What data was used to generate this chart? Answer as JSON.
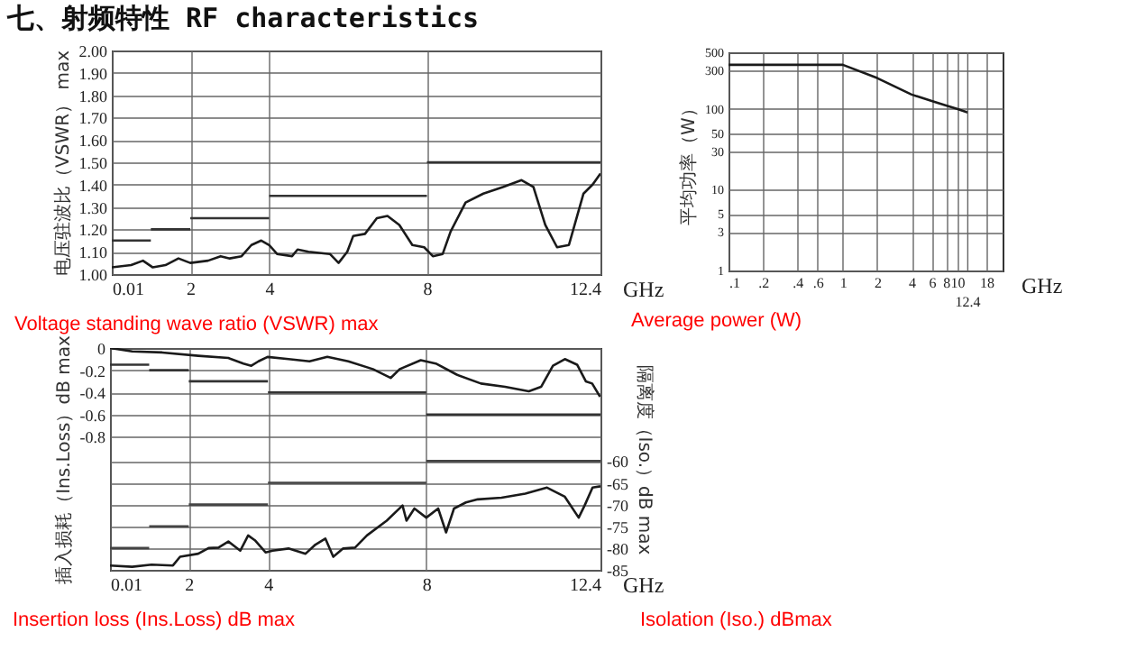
{
  "chart_data": [
    {
      "type": "line",
      "title": "七、射频特性 RF characteristics",
      "xlabel": "GHz",
      "ylabel": "电压驻波比（VSWR） max",
      "annotations": [
        "Voltage standing wave ratio (VSWR) max"
      ],
      "xlim": [
        0.01,
        12.4
      ],
      "xticks": [
        0.01,
        2,
        4,
        8,
        12.4
      ],
      "ylim": [
        1,
        2
      ],
      "yticks": [
        {
          "value": 1,
          "label": "1.00"
        },
        {
          "value": 1.1,
          "label": "1.10"
        },
        {
          "value": 1.2,
          "label": "1.20"
        },
        {
          "value": 1.3,
          "label": "1.30"
        },
        {
          "value": 1.4,
          "label": "1.40"
        },
        {
          "value": 1.5,
          "label": "1.50"
        },
        {
          "value": 1.6,
          "label": "1.60"
        },
        {
          "value": 1.7,
          "label": "1.70"
        },
        {
          "value": 1.8,
          "label": "1.80"
        },
        {
          "value": 1.9,
          "label": "1.90"
        },
        {
          "value": 2,
          "label": "2.00"
        }
      ],
      "grid": true,
      "series": [
        {
          "color": "#1a1a1a",
          "x": [
            0.01,
            0.5,
            0.8,
            1.05,
            1.37,
            1.7,
            2,
            2.45,
            2.77,
            3,
            3.3,
            3.55,
            3.8,
            4,
            4.2,
            4.58,
            4.72,
            5,
            5.54,
            5.76,
            5.98,
            6.13,
            6.43,
            6.73,
            7,
            7.3,
            7.63,
            7.93,
            8.15,
            8.4,
            8.6,
            8.98,
            9.43,
            9.94,
            10.4,
            10.7,
            11,
            11.3,
            11.6,
            11.97,
            12.2,
            12.4
          ],
          "values": [
            1.03,
            1.04,
            1.06,
            1.03,
            1.04,
            1.07,
            1.05,
            1.06,
            1.08,
            1.07,
            1.08,
            1.13,
            1.15,
            1.13,
            1.09,
            1.08,
            1.11,
            1.1,
            1.09,
            1.05,
            1.1,
            1.17,
            1.18,
            1.25,
            1.26,
            1.22,
            1.13,
            1.12,
            1.08,
            1.09,
            1.19,
            1.32,
            1.36,
            1.39,
            1.42,
            1.39,
            1.22,
            1.12,
            1.13,
            1.36,
            1.4,
            1.45
          ]
        },
        {
          "color": "#333333",
          "x": [
            0.01,
            1,
            null,
            1,
            2,
            null,
            2,
            4,
            null,
            4,
            8,
            null,
            8,
            12.4
          ],
          "values": [
            1.15,
            1.15,
            null,
            1.2,
            1.2,
            null,
            1.25,
            1.25,
            null,
            1.35,
            1.35,
            null,
            1.5,
            1.5
          ]
        }
      ]
    },
    {
      "type": "line",
      "xlabel": "GHz",
      "ylabel": "平均功率（W）",
      "annotations": [
        "Average power (W)"
      ],
      "log": "xy",
      "xlim": [
        0.1,
        25
      ],
      "xticks": [
        {
          "value": 0.1,
          "label": ".1"
        },
        {
          "value": 0.2,
          "label": ".2"
        },
        {
          "value": 0.4,
          "label": ".4"
        },
        {
          "value": 0.6,
          "label": ".6"
        },
        1,
        2,
        4,
        6,
        8,
        10,
        18
      ],
      "ref_lines": [
        {
          "axis": "x",
          "value": 12.4,
          "label": "12.4"
        }
      ],
      "ylim": [
        1,
        500
      ],
      "yticks": [
        1,
        3,
        5,
        10,
        30,
        50,
        100,
        300,
        500
      ],
      "grid": true,
      "series": [
        {
          "color": "#1a1a1a",
          "x": [
            0.1,
            1,
            2,
            4,
            6,
            8,
            10,
            12.4
          ],
          "values": [
            350,
            350,
            240,
            150,
            125,
            110,
            100,
            90
          ]
        }
      ]
    },
    {
      "type": "line",
      "xlabel": "GHz",
      "ylabel": "插入损耗（Ins.Loss）dB max",
      "y2label": "隔离度（Iso.）dB max",
      "annotations": [
        "Insertion loss (Ins.Loss) dB max",
        "Isolation (Iso.) dBmax"
      ],
      "xlim": [
        0.01,
        12.4
      ],
      "xticks": [
        0.01,
        2,
        4,
        8,
        12.4
      ],
      "ylim": [
        -2,
        0
      ],
      "yticks": [
        0,
        -0.2,
        -0.4,
        -0.6,
        -0.8
      ],
      "y2lim": [
        -85,
        -34
      ],
      "y2ticks": [
        -60,
        -65,
        -70,
        -75,
        -80,
        -85
      ],
      "grid": true,
      "series": [
        {
          "color": "#1a1a1a",
          "x": [
            0.01,
            0.57,
            1.33,
            2.24,
            3,
            3.38,
            3.58,
            3.76,
            3.99,
            4.52,
            5.05,
            5.5,
            6.03,
            6.65,
            7.1,
            7.33,
            7.86,
            8.24,
            8.77,
            9.38,
            9.99,
            10.59,
            10.9,
            11.2,
            11.5,
            11.81,
            12.03,
            12.19,
            12.39
          ],
          "values": [
            0,
            -0.03,
            -0.04,
            -0.07,
            -0.09,
            -0.14,
            -0.16,
            -0.12,
            -0.08,
            -0.1,
            -0.12,
            -0.08,
            -0.12,
            -0.19,
            -0.27,
            -0.19,
            -0.11,
            -0.14,
            -0.24,
            -0.32,
            -0.35,
            -0.39,
            -0.35,
            -0.16,
            -0.1,
            -0.15,
            -0.3,
            -0.32,
            -0.44
          ]
        },
        {
          "color": "#333333",
          "x": [
            0.01,
            1,
            null,
            1,
            2,
            null,
            2,
            4,
            null,
            4,
            8,
            null,
            8,
            12.4
          ],
          "values": [
            -0.15,
            -0.15,
            null,
            -0.2,
            -0.2,
            null,
            -0.3,
            -0.3,
            null,
            -0.4,
            -0.4,
            null,
            -0.6,
            -0.6
          ]
        },
        {
          "color": "#1a1a1a",
          "axis": "y2",
          "x": [
            0.01,
            0.57,
            1.06,
            1.6,
            1.78,
            2.24,
            2.5,
            2.75,
            3,
            3.3,
            3.5,
            3.67,
            3.94,
            4.12,
            4.52,
            4.95,
            5.2,
            5.45,
            5.65,
            5.9,
            6.2,
            6.5,
            7,
            7.4,
            7.5,
            7.7,
            8,
            8.3,
            8.5,
            8.7,
            9,
            9.3,
            9.9,
            10.5,
            11.05,
            11.5,
            11.85,
            12,
            12.2,
            12.4
          ],
          "values": [
            -84,
            -84.3,
            -83.8,
            -84,
            -82,
            -81.3,
            -80,
            -79.9,
            -78.5,
            -80.6,
            -77.1,
            -78.2,
            -81,
            -80.6,
            -80.1,
            -81.3,
            -79.2,
            -77.8,
            -82,
            -80.1,
            -79.9,
            -77.1,
            -73.7,
            -70.2,
            -73.7,
            -70.9,
            -73,
            -70.9,
            -76.4,
            -70.9,
            -69.5,
            -68.8,
            -68.4,
            -67.5,
            -66.1,
            -68.2,
            -73,
            -70.2,
            -66.1,
            -65.8
          ]
        },
        {
          "color": "#444444",
          "axis": "y2",
          "x": [
            0.01,
            1,
            null,
            1,
            2,
            null,
            2,
            4,
            null,
            4,
            8,
            null,
            8,
            12.4
          ],
          "values": [
            -80,
            -80,
            null,
            -75,
            -75,
            null,
            -70,
            -70,
            null,
            -65,
            -65,
            null,
            -60,
            -60
          ]
        }
      ]
    }
  ]
}
